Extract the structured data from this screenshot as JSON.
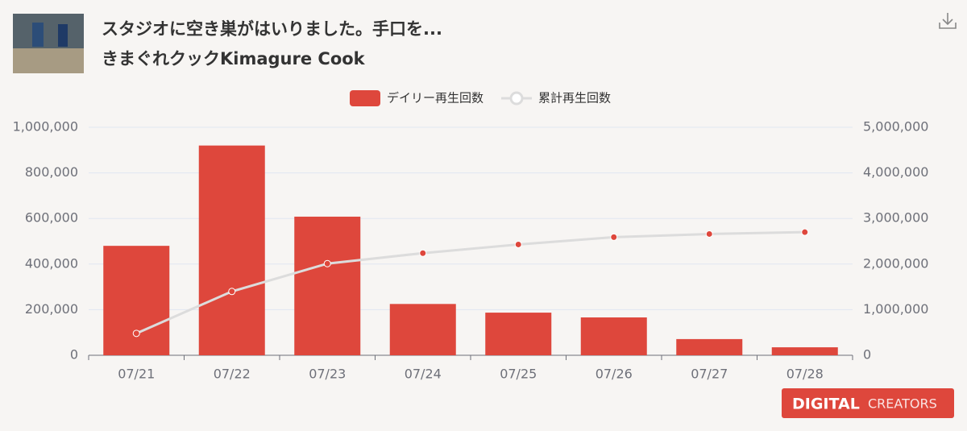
{
  "header": {
    "title": "スタジオに空き巣がはいりました。手口を...",
    "channel": "きまぐれクックKimagure Cook"
  },
  "chart_data": {
    "type": "bar",
    "categories": [
      "07/21",
      "07/22",
      "07/23",
      "07/24",
      "07/25",
      "07/26",
      "07/27",
      "07/28"
    ],
    "series": [
      {
        "name": "デイリー再生回数",
        "type": "bar",
        "color": "#de473c",
        "values": [
          480000,
          920000,
          608000,
          225000,
          187000,
          166000,
          71000,
          35000
        ]
      },
      {
        "name": "累計再生回数",
        "type": "line",
        "axis": "y2",
        "color": "#dcdcdc",
        "values": [
          480000,
          1400000,
          2010000,
          2240000,
          2430000,
          2590000,
          2660000,
          2700000
        ]
      }
    ],
    "ylim": [
      0,
      1000000
    ],
    "yticks": [
      0,
      {
        "value": 200000,
        "label": "200,000"
      },
      {
        "value": 400000,
        "label": "400,000"
      },
      {
        "value": 600000,
        "label": "600,000"
      },
      {
        "value": 800000,
        "label": "800,000"
      },
      {
        "value": 1000000,
        "label": "1,000,000"
      }
    ],
    "y2lim": [
      0,
      5000000
    ],
    "y2ticks": [
      0,
      {
        "value": 1000000,
        "label": "1,000,000"
      },
      {
        "value": 2000000,
        "label": "2,000,000"
      },
      {
        "value": 3000000,
        "label": "3,000,000"
      },
      {
        "value": 4000000,
        "label": "4,000,000"
      },
      {
        "value": 5000000,
        "label": "5,000,000"
      }
    ],
    "grid": true,
    "legend": "top"
  },
  "watermark": {
    "brand": "DIGITAL",
    "suffix": "CREATORS"
  }
}
